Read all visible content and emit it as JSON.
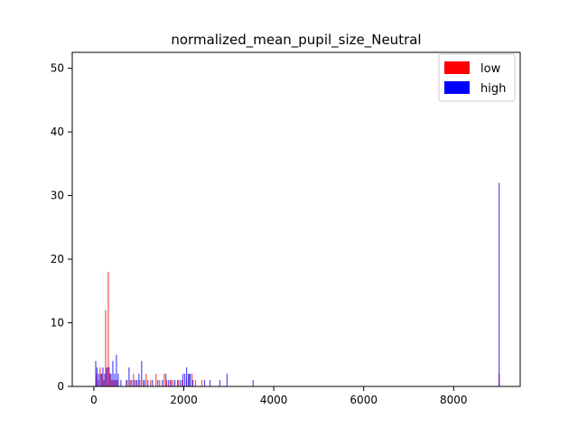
{
  "chart_data": {
    "type": "histogram",
    "title": "normalized_mean_pupil_size_Neutral",
    "xlabel": "",
    "ylabel": "",
    "xlim": [
      -480,
      9480
    ],
    "ylim": [
      0,
      52.5
    ],
    "x_ticks": [
      0,
      2000,
      4000,
      6000,
      8000
    ],
    "y_ticks": [
      0,
      10,
      20,
      30,
      40,
      50
    ],
    "tick_labels_x": [
      "0",
      "2000",
      "4000",
      "6000",
      "8000"
    ],
    "tick_labels_y": [
      "0",
      "10",
      "20",
      "30",
      "40",
      "50"
    ],
    "grid": false,
    "legend_position": "top-right",
    "bin_width": 20,
    "series": [
      {
        "name": "low",
        "color": "#ff0000",
        "opacity": 0.7,
        "bins": [
          [
            50,
            2
          ],
          [
            90,
            1
          ],
          [
            130,
            3
          ],
          [
            170,
            2
          ],
          [
            210,
            1
          ],
          [
            250,
            12
          ],
          [
            290,
            3
          ],
          [
            310,
            18
          ],
          [
            350,
            2
          ],
          [
            390,
            1
          ],
          [
            430,
            1
          ],
          [
            470,
            1
          ],
          [
            510,
            1
          ],
          [
            730,
            1
          ],
          [
            800,
            1
          ],
          [
            870,
            2
          ],
          [
            950,
            1
          ],
          [
            1010,
            1
          ],
          [
            1090,
            1
          ],
          [
            1150,
            2
          ],
          [
            1250,
            1
          ],
          [
            1370,
            2
          ],
          [
            1450,
            1
          ],
          [
            1550,
            2
          ],
          [
            1610,
            1
          ],
          [
            1690,
            1
          ],
          [
            1750,
            1
          ],
          [
            1870,
            1
          ],
          [
            1950,
            1
          ],
          [
            2050,
            1
          ],
          [
            2110,
            2
          ],
          [
            2170,
            2
          ],
          [
            2250,
            1
          ],
          [
            2390,
            1
          ],
          [
            9000,
            2
          ]
        ]
      },
      {
        "name": "high",
        "color": "#0000ff",
        "opacity": 0.7,
        "bins": [
          [
            30,
            4
          ],
          [
            60,
            3
          ],
          [
            100,
            2
          ],
          [
            150,
            2
          ],
          [
            190,
            3
          ],
          [
            230,
            2
          ],
          [
            270,
            3
          ],
          [
            330,
            3
          ],
          [
            370,
            2
          ],
          [
            410,
            4
          ],
          [
            450,
            2
          ],
          [
            490,
            5
          ],
          [
            530,
            2
          ],
          [
            590,
            1
          ],
          [
            710,
            1
          ],
          [
            770,
            3
          ],
          [
            830,
            1
          ],
          [
            890,
            1
          ],
          [
            930,
            1
          ],
          [
            990,
            2
          ],
          [
            1050,
            4
          ],
          [
            1110,
            1
          ],
          [
            1190,
            1
          ],
          [
            1290,
            1
          ],
          [
            1410,
            1
          ],
          [
            1510,
            1
          ],
          [
            1590,
            2
          ],
          [
            1650,
            1
          ],
          [
            1710,
            1
          ],
          [
            1790,
            1
          ],
          [
            1850,
            1
          ],
          [
            1910,
            1
          ],
          [
            1970,
            2
          ],
          [
            2010,
            2
          ],
          [
            2050,
            3
          ],
          [
            2090,
            2
          ],
          [
            2130,
            2
          ],
          [
            2190,
            1
          ],
          [
            2450,
            1
          ],
          [
            2570,
            1
          ],
          [
            2790,
            1
          ],
          [
            2950,
            2
          ],
          [
            3530,
            1
          ],
          [
            9000,
            32
          ]
        ]
      }
    ]
  }
}
